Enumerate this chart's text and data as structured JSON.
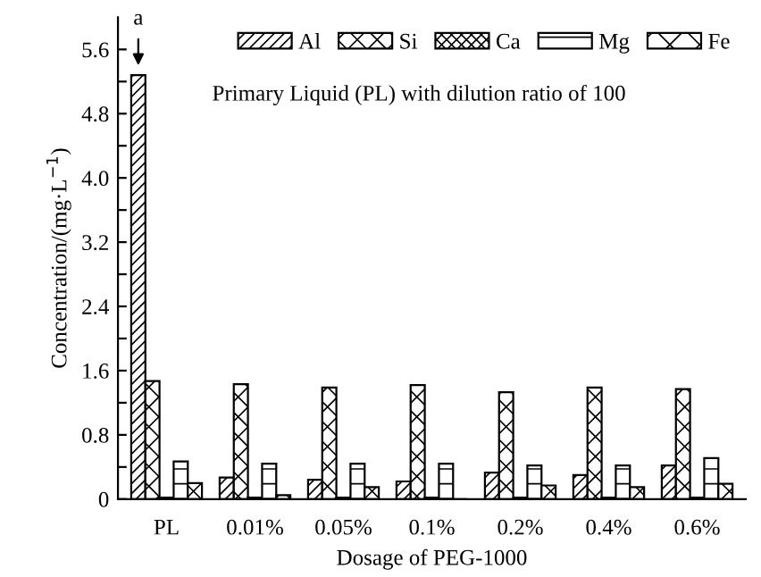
{
  "chart_data": {
    "type": "bar",
    "xlabel": "Dosage of PEG-1000",
    "ylabel": "Concentration/(mg·L$^{−1}$)",
    "categories": [
      "PL",
      "0.01%",
      "0.05%",
      "0.1%",
      "0.2%",
      "0.4%",
      "0.6%"
    ],
    "series": [
      {
        "name": "Al",
        "color": "#000000",
        "values": [
          5.28,
          0.27,
          0.24,
          0.22,
          0.33,
          0.3,
          0.42
        ]
      },
      {
        "name": "Si",
        "color": "#000000",
        "values": [
          1.47,
          1.43,
          1.39,
          1.42,
          1.33,
          1.39,
          1.37
        ]
      },
      {
        "name": "Ca",
        "color": "#000000",
        "values": [
          0.02,
          0.02,
          0.02,
          0.02,
          0.02,
          0.02,
          0.02
        ]
      },
      {
        "name": "Mg",
        "color": "#000000",
        "values": [
          0.47,
          0.44,
          0.44,
          0.44,
          0.42,
          0.42,
          0.51
        ]
      },
      {
        "name": "Fe",
        "color": "#000000",
        "values": [
          0.2,
          0.05,
          0.15,
          0,
          0.17,
          0.15,
          0.19
        ]
      }
    ],
    "ylim": [
      0,
      6
    ],
    "yticks": [
      0,
      {
        "value": 0.4,
        "label": null
      },
      0.8,
      {
        "value": 1.2,
        "label": null
      },
      1.6,
      {
        "value": 2.0,
        "label": null
      },
      2.4,
      {
        "value": 2.8,
        "label": null
      },
      3.2,
      {
        "value": 3.6,
        "label": null
      },
      {
        "value": 4.0,
        "label": "4.0"
      },
      {
        "value": 4.4,
        "label": null
      },
      4.8,
      {
        "value": 5.2,
        "label": null
      },
      5.6
    ],
    "legend": "top right",
    "annotations": [
      "a",
      "Primary Liquid (PL) with dilution ratio of 100"
    ]
  }
}
